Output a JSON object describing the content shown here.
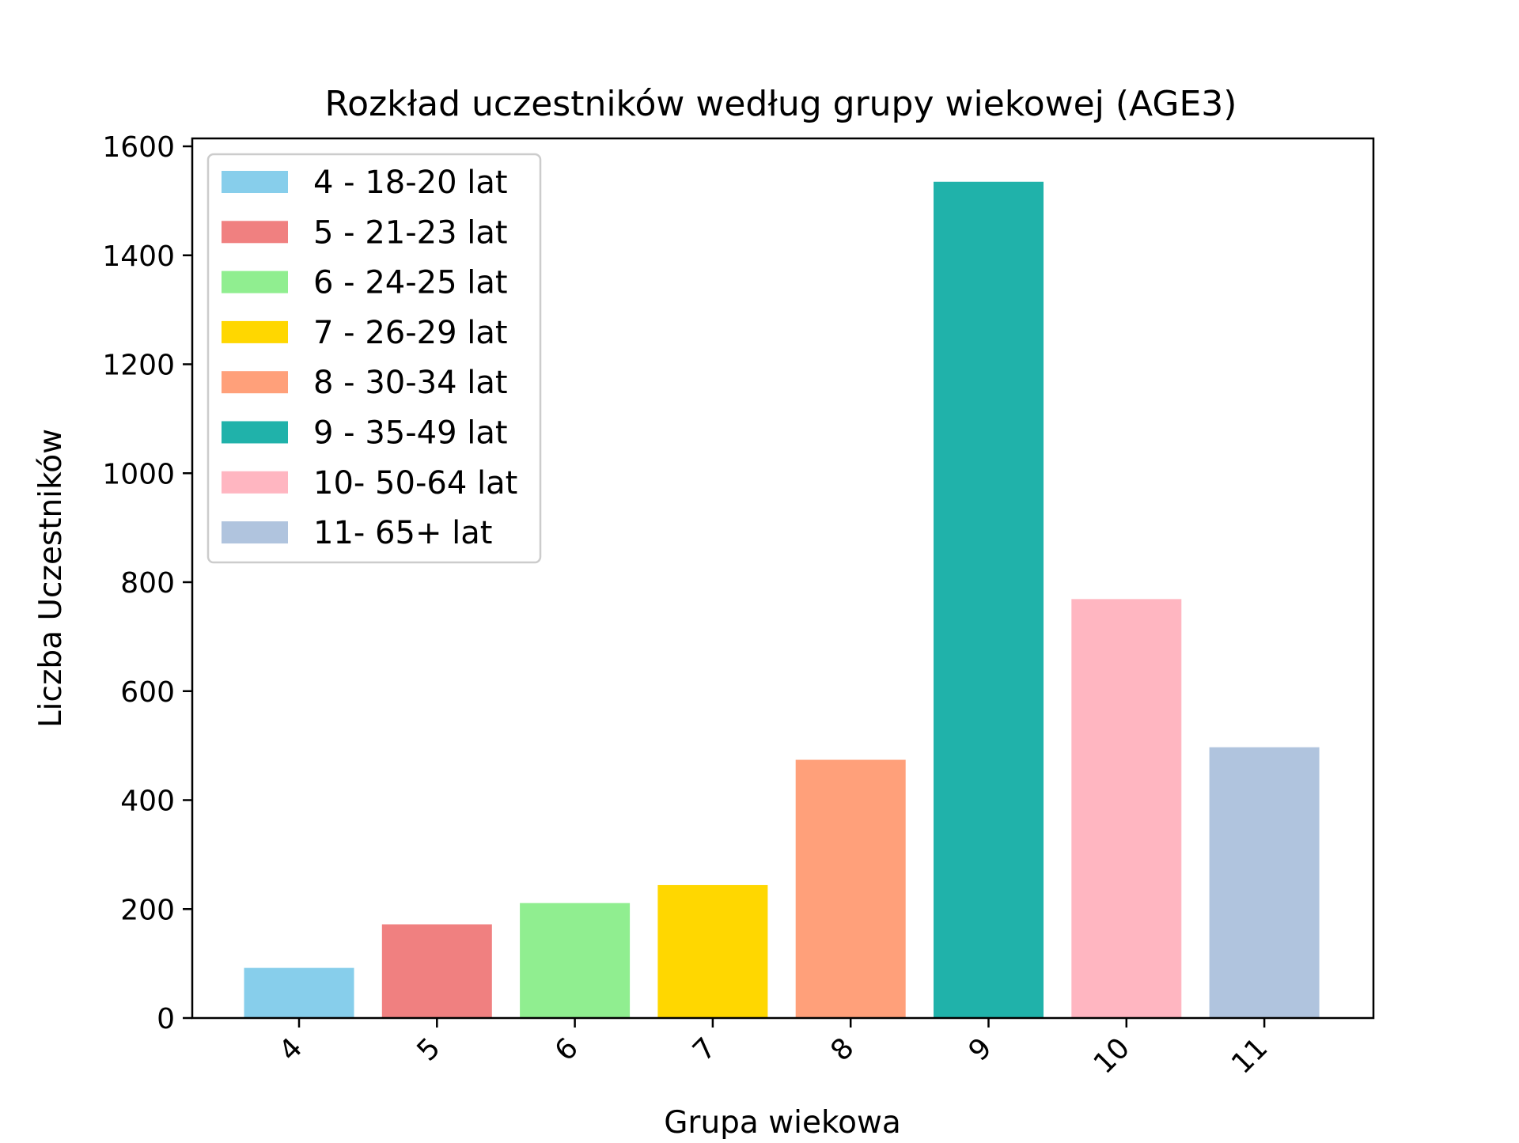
{
  "chart_data": {
    "type": "bar",
    "title": "Rozkład uczestników według grupy wiekowej (AGE3)",
    "xlabel": "Grupa wiekowa",
    "ylabel": "Liczba Uczestników",
    "categories": [
      "4",
      "5",
      "6",
      "7",
      "8",
      "9",
      "10",
      "11"
    ],
    "values": [
      92,
      172,
      211,
      244,
      474,
      1535,
      769,
      497
    ],
    "colors": [
      "#87ceeb",
      "#f08080",
      "#90ee90",
      "#ffd700",
      "#ffa07a",
      "#20b2aa",
      "#ffb6c1",
      "#b0c4de"
    ],
    "ylim": [
      0,
      1600
    ],
    "yticks": [
      0,
      200,
      400,
      600,
      800,
      1000,
      1200,
      1400,
      1600
    ],
    "legend": {
      "position": "upper-left",
      "entries": [
        "4 - 18-20 lat",
        "5 - 21-23 lat",
        "6 - 24-25 lat",
        "7 - 26-29 lat",
        "8 - 30-34 lat",
        "9 - 35-49 lat",
        "10- 50-64 lat",
        "11- 65+ lat"
      ]
    },
    "grid": false
  }
}
